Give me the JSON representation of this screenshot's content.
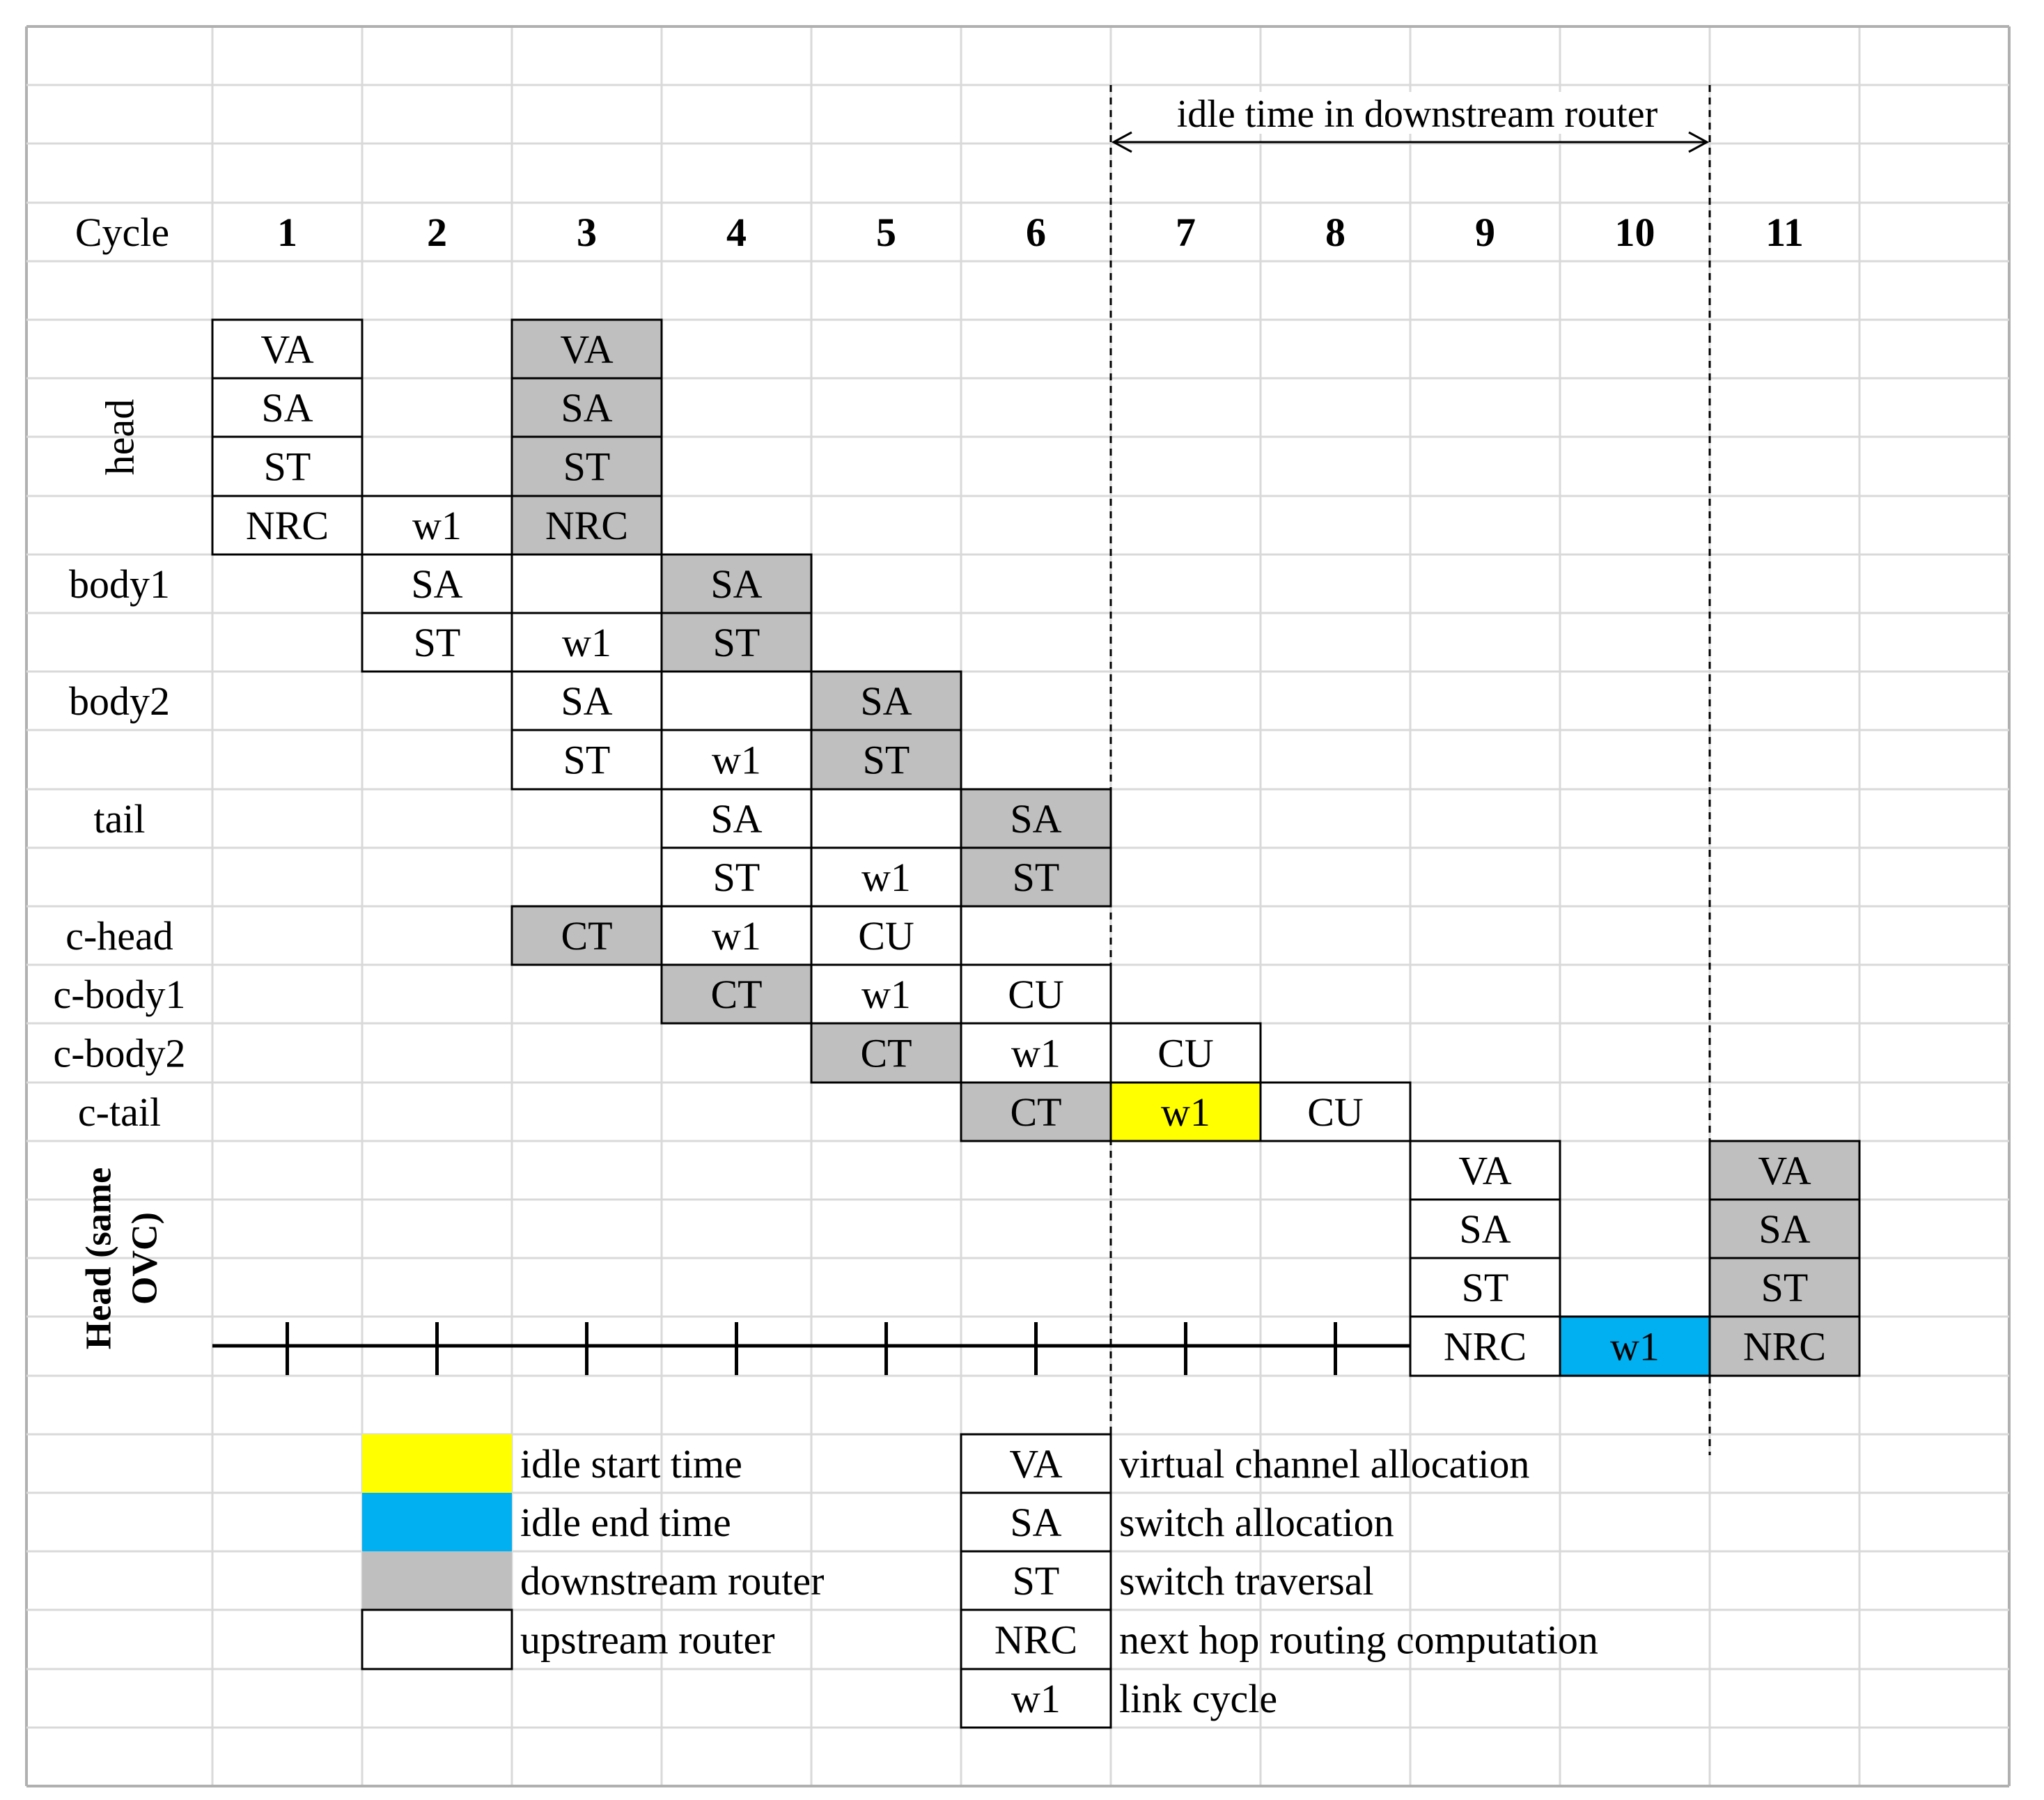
{
  "annotation": {
    "idle_span_label": "idle time in downstream router"
  },
  "header": {
    "label": "Cycle",
    "cycles": [
      "1",
      "2",
      "3",
      "4",
      "5",
      "6",
      "7",
      "8",
      "9",
      "10",
      "11"
    ]
  },
  "rows": [
    {
      "label": "head",
      "orientation": "vertical"
    },
    {
      "label": "body1"
    },
    {
      "label": "body2"
    },
    {
      "label": "tail"
    },
    {
      "label": "c-head"
    },
    {
      "label": "c-body1"
    },
    {
      "label": "c-body2"
    },
    {
      "label": "c-tail"
    },
    {
      "label": "Head (same OVC)",
      "orientation": "vertical",
      "lines": [
        "Head (same",
        "OVC)"
      ],
      "bold": true
    }
  ],
  "cells": [
    {
      "text": "VA",
      "cycle": 1,
      "line": 0,
      "fill": "upstream"
    },
    {
      "text": "SA",
      "cycle": 1,
      "line": 1,
      "fill": "upstream"
    },
    {
      "text": "ST",
      "cycle": 1,
      "line": 2,
      "fill": "upstream"
    },
    {
      "text": "NRC",
      "cycle": 1,
      "line": 3,
      "fill": "upstream"
    },
    {
      "text": "w1",
      "cycle": 2,
      "line": 3,
      "fill": "upstream"
    },
    {
      "text": "VA",
      "cycle": 3,
      "line": 0,
      "fill": "downstream"
    },
    {
      "text": "SA",
      "cycle": 3,
      "line": 1,
      "fill": "downstream"
    },
    {
      "text": "ST",
      "cycle": 3,
      "line": 2,
      "fill": "downstream"
    },
    {
      "text": "NRC",
      "cycle": 3,
      "line": 3,
      "fill": "downstream"
    },
    {
      "text": "SA",
      "cycle": 2,
      "line": 4,
      "fill": "upstream"
    },
    {
      "text": "ST",
      "cycle": 2,
      "line": 5,
      "fill": "upstream"
    },
    {
      "text": "w1",
      "cycle": 3,
      "line": 5,
      "fill": "upstream"
    },
    {
      "text": "SA",
      "cycle": 4,
      "line": 4,
      "fill": "downstream"
    },
    {
      "text": "ST",
      "cycle": 4,
      "line": 5,
      "fill": "downstream"
    },
    {
      "text": "SA",
      "cycle": 3,
      "line": 6,
      "fill": "upstream"
    },
    {
      "text": "ST",
      "cycle": 3,
      "line": 7,
      "fill": "upstream"
    },
    {
      "text": "w1",
      "cycle": 4,
      "line": 7,
      "fill": "upstream"
    },
    {
      "text": "SA",
      "cycle": 5,
      "line": 6,
      "fill": "downstream"
    },
    {
      "text": "ST",
      "cycle": 5,
      "line": 7,
      "fill": "downstream"
    },
    {
      "text": "SA",
      "cycle": 4,
      "line": 8,
      "fill": "upstream"
    },
    {
      "text": "ST",
      "cycle": 4,
      "line": 9,
      "fill": "upstream"
    },
    {
      "text": "w1",
      "cycle": 5,
      "line": 9,
      "fill": "upstream"
    },
    {
      "text": "SA",
      "cycle": 6,
      "line": 8,
      "fill": "downstream"
    },
    {
      "text": "ST",
      "cycle": 6,
      "line": 9,
      "fill": "downstream"
    },
    {
      "text": "CT",
      "cycle": 3,
      "line": 10,
      "fill": "downstream"
    },
    {
      "text": "w1",
      "cycle": 4,
      "line": 10,
      "fill": "upstream"
    },
    {
      "text": "CU",
      "cycle": 5,
      "line": 10,
      "fill": "upstream"
    },
    {
      "text": "CT",
      "cycle": 4,
      "line": 11,
      "fill": "downstream"
    },
    {
      "text": "w1",
      "cycle": 5,
      "line": 11,
      "fill": "upstream"
    },
    {
      "text": "CU",
      "cycle": 6,
      "line": 11,
      "fill": "upstream"
    },
    {
      "text": "CT",
      "cycle": 5,
      "line": 12,
      "fill": "downstream"
    },
    {
      "text": "w1",
      "cycle": 6,
      "line": 12,
      "fill": "upstream"
    },
    {
      "text": "CU",
      "cycle": 7,
      "line": 12,
      "fill": "upstream"
    },
    {
      "text": "CT",
      "cycle": 6,
      "line": 13,
      "fill": "downstream"
    },
    {
      "text": "w1",
      "cycle": 7,
      "line": 13,
      "fill": "idle-start"
    },
    {
      "text": "CU",
      "cycle": 8,
      "line": 13,
      "fill": "upstream"
    },
    {
      "text": "VA",
      "cycle": 9,
      "line": 14,
      "fill": "upstream"
    },
    {
      "text": "SA",
      "cycle": 9,
      "line": 15,
      "fill": "upstream"
    },
    {
      "text": "ST",
      "cycle": 9,
      "line": 16,
      "fill": "upstream"
    },
    {
      "text": "NRC",
      "cycle": 9,
      "line": 17,
      "fill": "upstream"
    },
    {
      "text": "w1",
      "cycle": 10,
      "line": 17,
      "fill": "idle-end"
    },
    {
      "text": "VA",
      "cycle": 11,
      "line": 14,
      "fill": "downstream"
    },
    {
      "text": "SA",
      "cycle": 11,
      "line": 15,
      "fill": "downstream"
    },
    {
      "text": "ST",
      "cycle": 11,
      "line": 16,
      "fill": "downstream"
    },
    {
      "text": "NRC",
      "cycle": 11,
      "line": 17,
      "fill": "downstream"
    }
  ],
  "colors": {
    "idle-start": "#ffff00",
    "idle-end": "#00b0f0",
    "downstream": "#bfbfbf",
    "upstream": "#ffffff",
    "gridline": "#d9d9d9"
  },
  "legend": {
    "colors": [
      {
        "fill": "idle-start",
        "label": "idle start time"
      },
      {
        "fill": "idle-end",
        "label": "idle end time"
      },
      {
        "fill": "downstream",
        "label": "downstream router"
      },
      {
        "fill": "upstream",
        "label": "upstream router"
      }
    ],
    "abbreviations": [
      {
        "abbr": "VA",
        "label": "virtual channel allocation"
      },
      {
        "abbr": "SA",
        "label": "switch allocation"
      },
      {
        "abbr": "ST",
        "label": "switch traversal"
      },
      {
        "abbr": "NRC",
        "label": "next hop routing computation"
      },
      {
        "abbr": "w1",
        "label": "link cycle"
      }
    ]
  }
}
